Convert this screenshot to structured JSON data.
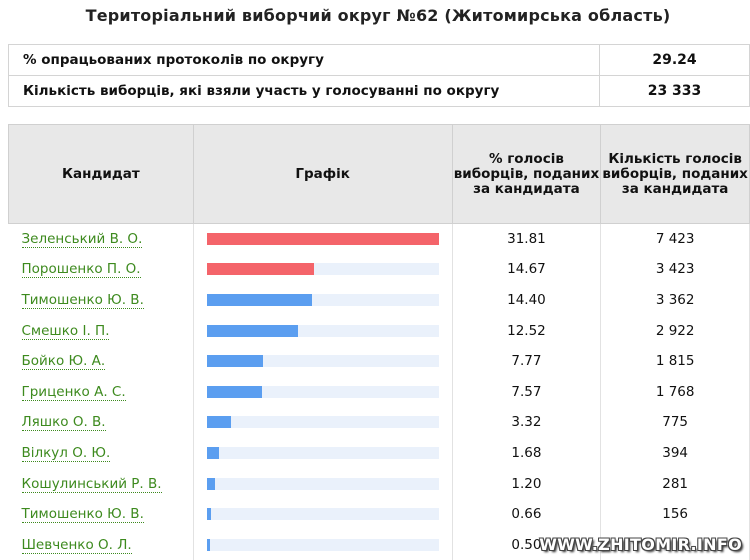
{
  "header": {
    "title": "Територіальний виборчий округ №62 (Житомирська область)"
  },
  "summary": [
    {
      "label": "% опрацьованих протоколів по округу",
      "value": "29.24"
    },
    {
      "label": "Кількість виборців, які взяли участь у голосуванні по округу",
      "value": "23 333"
    }
  ],
  "results": {
    "columns": [
      "Кандидат",
      "Графік",
      "% голосів виборців, поданих за кандидата",
      "Кількість голосів виборців, поданих за кандидата"
    ],
    "rows": [
      {
        "name": "Зеленський В. О.",
        "percent": "31.81",
        "votes": "7 423",
        "share": 31.81,
        "color": "#f4646a"
      },
      {
        "name": "Порошенко П. О.",
        "percent": "14.67",
        "votes": "3 423",
        "share": 14.67,
        "color": "#f4646a"
      },
      {
        "name": "Тимошенко Ю. В.",
        "percent": "14.40",
        "votes": "3 362",
        "share": 14.4,
        "color": "#5b9ef0"
      },
      {
        "name": "Смешко І. П.",
        "percent": "12.52",
        "votes": "2 922",
        "share": 12.52,
        "color": "#5b9ef0"
      },
      {
        "name": "Бойко Ю. А.",
        "percent": "7.77",
        "votes": "1 815",
        "share": 7.77,
        "color": "#5b9ef0"
      },
      {
        "name": "Гриценко А. С.",
        "percent": "7.57",
        "votes": "1 768",
        "share": 7.57,
        "color": "#5b9ef0"
      },
      {
        "name": "Ляшко О. В.",
        "percent": "3.32",
        "votes": "775",
        "share": 3.32,
        "color": "#5b9ef0"
      },
      {
        "name": "Вілкул О. Ю.",
        "percent": "1.68",
        "votes": "394",
        "share": 1.68,
        "color": "#5b9ef0"
      },
      {
        "name": "Кошулинський Р. В.",
        "percent": "1.20",
        "votes": "281",
        "share": 1.2,
        "color": "#5b9ef0"
      },
      {
        "name": "Тимошенко Ю. В.",
        "percent": "0.66",
        "votes": "156",
        "share": 0.66,
        "color": "#5b9ef0"
      },
      {
        "name": "Шевченко О. Л.",
        "percent": "0.50",
        "votes": "",
        "share": 0.5,
        "color": "#5b9ef0"
      }
    ],
    "bar_max": 31.81
  },
  "watermark": "WWW.ZHITOMIR.INFO"
}
